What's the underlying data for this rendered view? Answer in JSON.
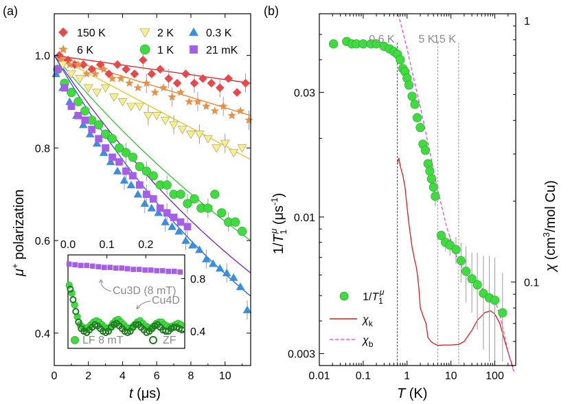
{
  "chart_data": [
    {
      "panel_label": "(a)",
      "type": "scatter",
      "xlabel": "t (μs)",
      "xlabel_parts": {
        "symbol": "t",
        "unit": " (μs)"
      },
      "ylabel": "μ+ polarization",
      "ylabel_parts": {
        "symbol": "μ",
        "sup": "+",
        "rest": " polarization"
      },
      "xlim": [
        0,
        11.5
      ],
      "ylim": [
        0.33,
        1.09
      ],
      "xticks": [
        "0",
        "2",
        "4",
        "6",
        "8",
        "10"
      ],
      "xtick_values": [
        0,
        2,
        4,
        6,
        8,
        10
      ],
      "yticks": [
        "0.4",
        "0.6",
        "0.8",
        "1.0"
      ],
      "ytick_values": [
        0.4,
        0.6,
        0.8,
        1.0
      ],
      "legend": [
        "150 K",
        "2 K",
        "0.3 K",
        "6 K",
        "1 K",
        "21 mK"
      ],
      "series": [
        {
          "name": "150 K",
          "marker": "diamond",
          "color": "#e8474b",
          "fit_color": "#d62020",
          "x": [
            0.3,
            0.8,
            1.2,
            1.7,
            2.2,
            2.7,
            3.2,
            3.7,
            4.2,
            4.7,
            5.2,
            5.7,
            6.2,
            6.7,
            7.2,
            7.7,
            8.2,
            8.7,
            9.2,
            9.7,
            10.2,
            10.7,
            11.2
          ],
          "y": [
            1.0,
            0.99,
            0.98,
            0.98,
            0.97,
            0.98,
            0.96,
            0.98,
            0.97,
            0.96,
            0.99,
            0.96,
            0.97,
            0.95,
            0.94,
            0.96,
            0.94,
            0.95,
            0.94,
            0.93,
            0.95,
            0.92,
            0.94
          ],
          "fit": [
            1.0,
            0.94
          ]
        },
        {
          "name": "6 K",
          "marker": "star",
          "color": "#e8904a",
          "fit_color": "#f08020",
          "x": [
            0.4,
            0.9,
            1.4,
            1.9,
            2.4,
            2.9,
            3.4,
            3.9,
            4.4,
            4.9,
            5.4,
            5.9,
            6.4,
            6.9,
            7.4,
            7.9,
            8.4,
            8.9,
            9.4,
            9.9,
            10.4,
            10.9,
            11.4
          ],
          "y": [
            0.99,
            0.98,
            0.98,
            0.96,
            0.96,
            0.97,
            0.95,
            0.95,
            0.94,
            0.93,
            0.94,
            0.92,
            0.93,
            0.91,
            0.92,
            0.9,
            0.9,
            0.89,
            0.88,
            0.89,
            0.87,
            0.88,
            0.86
          ],
          "fit": [
            1.0,
            0.87
          ]
        },
        {
          "name": "2 K",
          "marker": "triangle-down",
          "color": "#f6ee90",
          "fit_color": "#e8c020",
          "x": [
            0.5,
            1.0,
            1.5,
            2.0,
            2.5,
            3.0,
            3.5,
            4.0,
            4.5,
            5.0,
            5.5,
            6.0,
            6.5,
            7.0,
            7.5,
            8.0,
            8.5,
            9.0,
            9.5,
            10.0,
            10.5,
            11.0
          ],
          "y": [
            0.98,
            0.96,
            0.95,
            0.93,
            0.92,
            0.93,
            0.91,
            0.9,
            0.89,
            0.89,
            0.87,
            0.87,
            0.86,
            0.85,
            0.84,
            0.83,
            0.83,
            0.82,
            0.8,
            0.81,
            0.79,
            0.8
          ],
          "fit": [
            1.0,
            0.775
          ]
        },
        {
          "name": "1 K",
          "marker": "circle",
          "color": "#3fdc3f",
          "fit_color": "#30c030",
          "x": [
            0.2,
            0.6,
            1.0,
            1.4,
            1.8,
            2.2,
            2.6,
            3.0,
            3.4,
            3.8,
            4.2,
            4.6,
            5.0,
            5.4,
            5.8,
            6.2,
            6.6,
            7.0,
            7.4,
            7.8,
            8.2,
            8.6,
            9.0,
            9.4,
            9.8,
            10.2,
            10.6,
            11.0
          ],
          "y": [
            0.97,
            0.94,
            0.92,
            0.9,
            0.88,
            0.86,
            0.85,
            0.83,
            0.82,
            0.8,
            0.79,
            0.78,
            0.76,
            0.75,
            0.74,
            0.72,
            0.72,
            0.7,
            0.7,
            0.68,
            0.69,
            0.67,
            0.67,
            0.7,
            0.66,
            0.64,
            0.64,
            0.62
          ],
          "fit": "exp",
          "fit_end": 0.6
        },
        {
          "name": "0.3 K",
          "marker": "triangle-up",
          "color": "#3a8ee0",
          "fit_color": "#1a60d0",
          "x": [
            0.1,
            0.5,
            0.9,
            1.3,
            1.7,
            2.1,
            2.5,
            2.9,
            3.3,
            3.7,
            4.1,
            4.5,
            4.9,
            5.3,
            5.7,
            6.1,
            6.5,
            6.9,
            7.3,
            7.7,
            8.1,
            8.5,
            8.9,
            9.3,
            9.7,
            10.1,
            10.5,
            10.9,
            11.3
          ],
          "y": [
            0.96,
            0.93,
            0.9,
            0.87,
            0.85,
            0.83,
            0.81,
            0.79,
            0.77,
            0.75,
            0.73,
            0.72,
            0.7,
            0.68,
            0.67,
            0.66,
            0.64,
            0.63,
            0.62,
            0.6,
            0.59,
            0.58,
            0.56,
            0.55,
            0.54,
            0.53,
            0.52,
            0.5,
            0.45
          ],
          "fit": "exp",
          "fit_end": 0.48
        },
        {
          "name": "21 mK",
          "marker": "square",
          "color": "#a55ee8",
          "fit_color": "#7020c0",
          "x": [
            0.2,
            0.6,
            1.0,
            1.4,
            1.8,
            2.2,
            2.6,
            3.0,
            3.4,
            3.8,
            4.2,
            4.6,
            5.0,
            5.4,
            5.8,
            6.2,
            6.6,
            7.0,
            7.4,
            7.8
          ],
          "y": [
            0.97,
            0.93,
            0.89,
            0.87,
            0.86,
            0.84,
            0.82,
            0.8,
            0.78,
            0.77,
            0.75,
            0.74,
            0.72,
            0.7,
            0.69,
            0.67,
            0.66,
            0.65,
            0.64,
            0.63
          ],
          "fit": "exp",
          "fit_end": 0.53
        }
      ],
      "inset": {
        "xticks": [
          "0.0",
          "0.1",
          "0.2"
        ],
        "xtick_values": [
          0.0,
          0.1,
          0.2
        ],
        "yticks": [
          "0.8",
          "0.4"
        ],
        "ytick_values": [
          0.8,
          0.4
        ],
        "xlim": [
          0.0,
          0.3
        ],
        "ylim": [
          0.27,
          0.98
        ],
        "annotations": [
          "Cu3D (8 mT)",
          "Cu4D"
        ],
        "legend": [
          "LF 8 mT",
          "ZF"
        ],
        "series": [
          {
            "name": "21 mK (inset)",
            "marker": "square",
            "color": "#a55ee8",
            "x": [
              0.003,
              0.018,
              0.033,
              0.048,
              0.063,
              0.078,
              0.093,
              0.108,
              0.123,
              0.138,
              0.153,
              0.168,
              0.183,
              0.198,
              0.213,
              0.228,
              0.243,
              0.258,
              0.273,
              0.288
            ],
            "y": [
              0.91,
              0.905,
              0.9,
              0.9,
              0.895,
              0.89,
              0.885,
              0.885,
              0.88,
              0.88,
              0.875,
              0.87,
              0.87,
              0.865,
              0.865,
              0.86,
              0.86,
              0.855,
              0.855,
              0.85
            ]
          },
          {
            "name": "LF 8 mT",
            "marker": "circle",
            "color": "#3fdc3f",
            "x": [
              0.003,
              0.01,
              0.017,
              0.024,
              0.031,
              0.038,
              0.045,
              0.052,
              0.059,
              0.066,
              0.073,
              0.08,
              0.087,
              0.094,
              0.101,
              0.108,
              0.115,
              0.122,
              0.129,
              0.136,
              0.143,
              0.15,
              0.157,
              0.164,
              0.171,
              0.178,
              0.185,
              0.192,
              0.199,
              0.206,
              0.213,
              0.22,
              0.227,
              0.234,
              0.241,
              0.248,
              0.255,
              0.262,
              0.269,
              0.276,
              0.283,
              0.29
            ],
            "y": [
              0.75,
              0.69,
              0.6,
              0.51,
              0.45,
              0.43,
              0.42,
              0.43,
              0.45,
              0.47,
              0.48,
              0.47,
              0.45,
              0.43,
              0.42,
              0.43,
              0.46,
              0.48,
              0.49,
              0.47,
              0.45,
              0.43,
              0.42,
              0.43,
              0.45,
              0.47,
              0.48,
              0.46,
              0.44,
              0.43,
              0.42,
              0.44,
              0.46,
              0.47,
              0.47,
              0.45,
              0.44,
              0.43,
              0.44,
              0.45,
              0.46,
              0.45
            ]
          },
          {
            "name": "ZF",
            "marker": "open-circle",
            "color": "#1f7a1f",
            "x": [
              0.006,
              0.013,
              0.02,
              0.027,
              0.034,
              0.041,
              0.048,
              0.055,
              0.062,
              0.069,
              0.076,
              0.083,
              0.09,
              0.097,
              0.104,
              0.111,
              0.118,
              0.125,
              0.132,
              0.139,
              0.146,
              0.153,
              0.16,
              0.167,
              0.174,
              0.181,
              0.188,
              0.195,
              0.202,
              0.209,
              0.216,
              0.223,
              0.23,
              0.237,
              0.244,
              0.251,
              0.258,
              0.265,
              0.272,
              0.279,
              0.286,
              0.293
            ],
            "y": [
              0.72,
              0.64,
              0.55,
              0.47,
              0.42,
              0.4,
              0.39,
              0.41,
              0.43,
              0.45,
              0.44,
              0.42,
              0.4,
              0.39,
              0.4,
              0.43,
              0.45,
              0.46,
              0.44,
              0.42,
              0.4,
              0.39,
              0.4,
              0.43,
              0.45,
              0.45,
              0.43,
              0.41,
              0.39,
              0.4,
              0.42,
              0.44,
              0.45,
              0.43,
              0.41,
              0.4,
              0.4,
              0.42,
              0.43,
              0.43,
              0.42,
              0.41
            ]
          }
        ]
      }
    },
    {
      "panel_label": "(b)",
      "type": "scatter",
      "xlabel": "T (K)",
      "xlabel_parts": {
        "symbol": "T",
        "unit": " (K)"
      },
      "ylabel_left": "1/T1μ (μs-1)",
      "ylabel_left_parts": {
        "lead": "1/",
        "symbol": "T",
        "sub": "1",
        "sup": "μ",
        "unit": " (μs",
        "unit_sup": "-1",
        "close": ")"
      },
      "ylabel_right": "χ (cm3/mol Cu)",
      "ylabel_right_parts": {
        "symbol": "χ",
        "unit": " (cm",
        "unit_sup": "3",
        "rest": "/mol Cu)"
      },
      "xscale": "log",
      "yscale": "log",
      "xlim": [
        0.01,
        300
      ],
      "ylim_left": [
        0.0027,
        0.06
      ],
      "ylim_right": [
        0.0488,
        1.0
      ],
      "xticks": [
        "0.01",
        "0.1",
        "1",
        "10",
        "100"
      ],
      "xtick_values": [
        0.01,
        0.1,
        1,
        10,
        100
      ],
      "yticks_left": [
        "0.003",
        "0.01",
        "0.03"
      ],
      "ytick_values_left": [
        0.003,
        0.01,
        0.03
      ],
      "yticks_right": [
        "0.1",
        "1"
      ],
      "ytick_values_right": [
        0.1,
        1
      ],
      "vlines": [
        {
          "x": 0.6,
          "label": "0.6 K"
        },
        {
          "x": 5,
          "label": "5 K"
        },
        {
          "x": 15,
          "label": "15 K"
        }
      ],
      "legend": [
        {
          "label": "1/T1μ",
          "parts": {
            "lead": "1/",
            "symbol": "T",
            "sub": "1",
            "sup": "μ"
          },
          "type": "marker",
          "color": "#3fdc3f"
        },
        {
          "label": "χk",
          "parts": {
            "symbol": "χ",
            "sub": "k"
          },
          "type": "line",
          "color": "#d21e1e"
        },
        {
          "label": "χb",
          "parts": {
            "symbol": "χ",
            "sub": "b"
          },
          "type": "dashed",
          "color": "#e040e0"
        }
      ],
      "series": [
        {
          "name": "1/T1μ",
          "axis": "left",
          "marker": "circle",
          "color": "#3fdc3f",
          "x": [
            0.021,
            0.042,
            0.055,
            0.07,
            0.1,
            0.15,
            0.2,
            0.3,
            0.4,
            0.5,
            0.6,
            0.7,
            0.8,
            0.9,
            1.0,
            1.1,
            1.3,
            1.5,
            1.7,
            2.0,
            2.3,
            2.6,
            3.0,
            3.3,
            3.6,
            4.0,
            4.4,
            6.0,
            7.5,
            9.5,
            13,
            17,
            22,
            30,
            40,
            55,
            75,
            100,
            150
          ],
          "y": [
            0.046,
            0.047,
            0.046,
            0.046,
            0.046,
            0.046,
            0.046,
            0.045,
            0.044,
            0.043,
            0.042,
            0.04,
            0.037,
            0.036,
            0.034,
            0.032,
            0.029,
            0.027,
            0.024,
            0.022,
            0.019,
            0.018,
            0.016,
            0.015,
            0.014,
            0.013,
            0.012,
            0.0085,
            0.008,
            0.0078,
            0.0075,
            0.0068,
            0.0062,
            0.0058,
            0.0055,
            0.0051,
            0.0049,
            0.0048,
            0.0043
          ],
          "yerr": [
            0,
            0,
            0,
            0,
            0,
            0,
            0,
            0,
            0,
            0,
            0,
            0,
            0,
            0,
            0,
            0,
            0,
            0,
            0,
            0,
            0,
            0,
            0,
            0,
            0,
            0,
            0.001,
            0,
            0.0006,
            0.0007,
            0.0009,
            0.0012,
            0.0015,
            0.0015,
            0.0018,
            0.002,
            0.0022,
            0.0022,
            0.0018
          ]
        },
        {
          "name": "χk",
          "axis": "right",
          "line": "solid",
          "color": "#d21e1e",
          "x": [
            0.6,
            0.65,
            0.7,
            0.8,
            0.9,
            1.0,
            1.1,
            1.3,
            1.5,
            1.6,
            1.7,
            1.8,
            1.9,
            2.0,
            2.3,
            2.7,
            3.0,
            3.5,
            4.0,
            5.0,
            7,
            10,
            15,
            20,
            30,
            40,
            60,
            80,
            100,
            130,
            170,
            220,
            260
          ],
          "y": [
            0.275,
            0.29,
            0.27,
            0.25,
            0.225,
            0.19,
            0.165,
            0.135,
            0.12,
            0.115,
            0.108,
            0.1,
            0.09,
            0.08,
            0.075,
            0.07,
            0.062,
            0.06,
            0.059,
            0.058,
            0.0582,
            0.0582,
            0.0585,
            0.06,
            0.066,
            0.072,
            0.077,
            0.078,
            0.076,
            0.07,
            0.06,
            0.052,
            0.048
          ]
        },
        {
          "name": "χb",
          "axis": "right",
          "line": "dashed",
          "color": "#e040e0",
          "x": [
            0.62,
            0.7,
            1.0,
            1.5,
            2,
            3,
            5,
            8,
            12,
            15,
            20,
            30,
            50,
            70,
            90,
            110,
            130,
            160,
            200,
            250,
            280
          ],
          "y": [
            1.0,
            0.93,
            0.74,
            0.55,
            0.45,
            0.33,
            0.22,
            0.16,
            0.13,
            0.12,
            0.11,
            0.1,
            0.095,
            0.09,
            0.086,
            0.082,
            0.075,
            0.065,
            0.055,
            0.048,
            0.046
          ]
        }
      ]
    }
  ]
}
